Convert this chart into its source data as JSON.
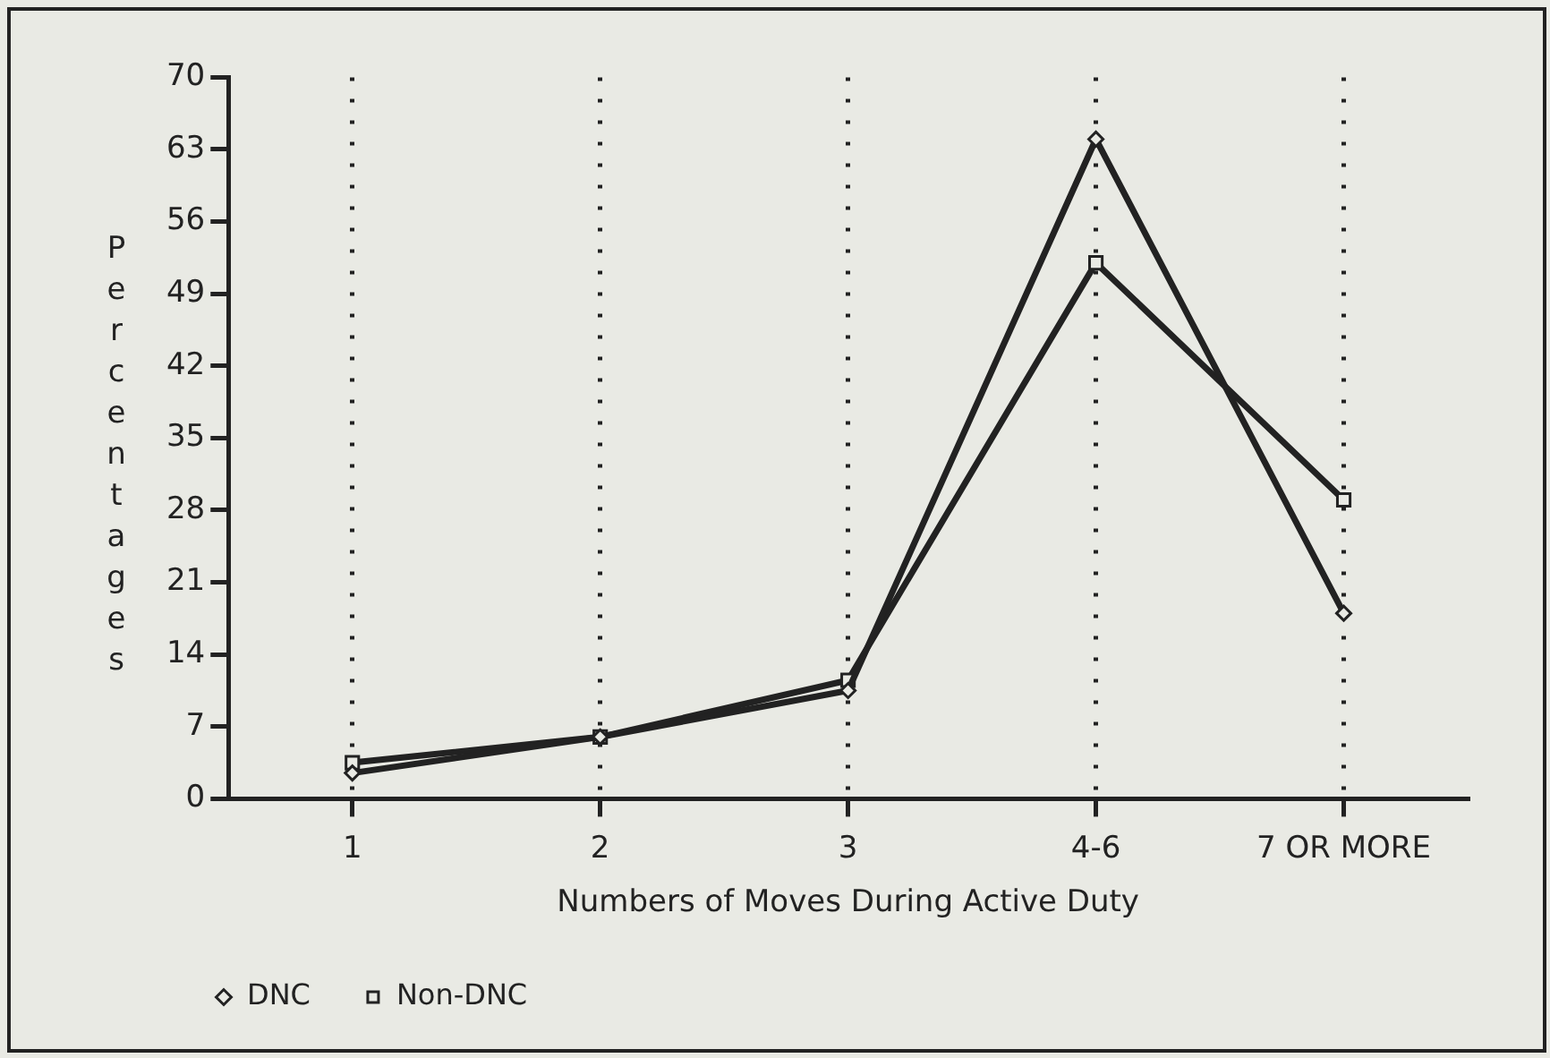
{
  "chart_data": {
    "type": "line",
    "xlabel": "Numbers of Moves During Active Duty",
    "ylabel": "Percentages",
    "categories": [
      "1",
      "2",
      "3",
      "4-6",
      "7 OR MORE"
    ],
    "series": [
      {
        "name": "DNC",
        "color": "#222222",
        "marker": "diamond",
        "values": [
          2.5,
          6,
          10.5,
          64,
          18
        ]
      },
      {
        "name": "Non-DNC",
        "color": "#222222",
        "marker": "square",
        "values": [
          3.5,
          6,
          11.5,
          52,
          29
        ]
      }
    ],
    "ylim": [
      0,
      70
    ],
    "yticks": [
      0,
      7,
      14,
      21,
      28,
      35,
      42,
      49,
      56,
      63,
      70
    ],
    "grid": "x",
    "legend": "bottom left"
  }
}
